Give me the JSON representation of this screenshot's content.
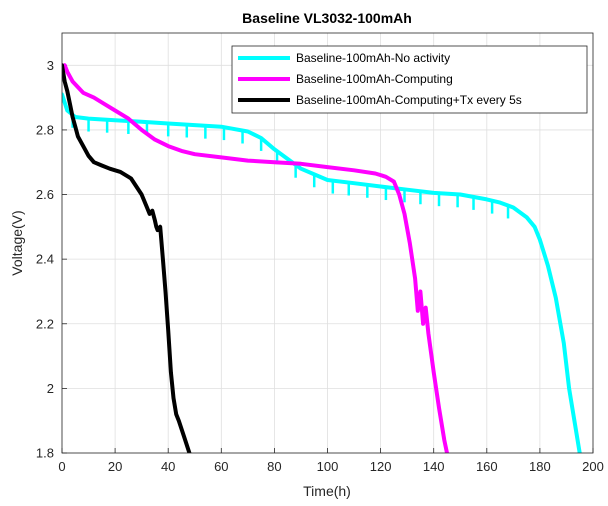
{
  "chart_data": {
    "type": "line",
    "title": "Baseline VL3032-100mAh",
    "xlabel": "Time(h)",
    "ylabel": "Voltage(V)",
    "xlim": [
      0,
      200
    ],
    "ylim": [
      1.8,
      3.1
    ],
    "xticks": [
      0,
      20,
      40,
      60,
      80,
      100,
      120,
      140,
      160,
      180,
      200
    ],
    "yticks": [
      1.8,
      2,
      2.2,
      2.4,
      2.6,
      2.8,
      3
    ],
    "ytick_labels": [
      "1.8",
      "2",
      "2.2",
      "2.4",
      "2.6",
      "2.8",
      "3"
    ],
    "grid": true,
    "legend_position": "top-right",
    "series": [
      {
        "name": "Baseline-100mAh-No activity",
        "color": "#00ffff",
        "x": [
          0,
          2,
          5,
          10,
          20,
          30,
          40,
          50,
          60,
          70,
          75,
          80,
          90,
          100,
          110,
          120,
          130,
          140,
          150,
          160,
          165,
          170,
          175,
          178,
          180,
          183,
          186,
          189,
          191,
          193,
          195
        ],
        "y": [
          2.91,
          2.86,
          2.84,
          2.835,
          2.83,
          2.825,
          2.82,
          2.815,
          2.81,
          2.795,
          2.775,
          2.74,
          2.68,
          2.645,
          2.635,
          2.625,
          2.615,
          2.605,
          2.6,
          2.585,
          2.575,
          2.56,
          2.53,
          2.5,
          2.46,
          2.38,
          2.28,
          2.14,
          2.0,
          1.9,
          1.8
        ],
        "spikes_x": [
          4,
          10,
          17,
          25,
          32,
          40,
          47,
          54,
          61,
          68,
          75,
          81,
          88,
          95,
          102,
          108,
          115,
          122,
          129,
          135,
          142,
          149,
          155,
          162,
          168
        ],
        "spike_depth": 0.04
      },
      {
        "name": "Baseline-100mAh-Computing",
        "color": "#ff00ff",
        "x": [
          0,
          1,
          2,
          4,
          8,
          12,
          16,
          20,
          25,
          30,
          35,
          40,
          45,
          50,
          60,
          70,
          80,
          90,
          100,
          110,
          118,
          122,
          125,
          127,
          129,
          131,
          133,
          134,
          135,
          136,
          137,
          138,
          140,
          142,
          144,
          145
        ],
        "y": [
          2.99,
          3.0,
          2.98,
          2.95,
          2.915,
          2.9,
          2.88,
          2.86,
          2.835,
          2.8,
          2.77,
          2.75,
          2.735,
          2.725,
          2.715,
          2.705,
          2.7,
          2.695,
          2.685,
          2.675,
          2.665,
          2.655,
          2.64,
          2.6,
          2.54,
          2.45,
          2.34,
          2.24,
          2.3,
          2.2,
          2.25,
          2.17,
          2.05,
          1.94,
          1.84,
          1.8
        ]
      },
      {
        "name": "Baseline-100mAh-Computing+Tx every 5s",
        "color": "#000000",
        "x": [
          0,
          1,
          2,
          3,
          4,
          5,
          6,
          8,
          10,
          12,
          15,
          18,
          22,
          26,
          30,
          32,
          33,
          34,
          35,
          35.5,
          36,
          37,
          38,
          39,
          40,
          41,
          42,
          43,
          44,
          46,
          48
        ],
        "y": [
          3.0,
          2.95,
          2.92,
          2.88,
          2.84,
          2.81,
          2.78,
          2.75,
          2.72,
          2.7,
          2.69,
          2.68,
          2.67,
          2.65,
          2.6,
          2.56,
          2.54,
          2.55,
          2.52,
          2.5,
          2.49,
          2.5,
          2.4,
          2.3,
          2.18,
          2.05,
          1.97,
          1.92,
          1.9,
          1.85,
          1.8
        ]
      }
    ]
  }
}
